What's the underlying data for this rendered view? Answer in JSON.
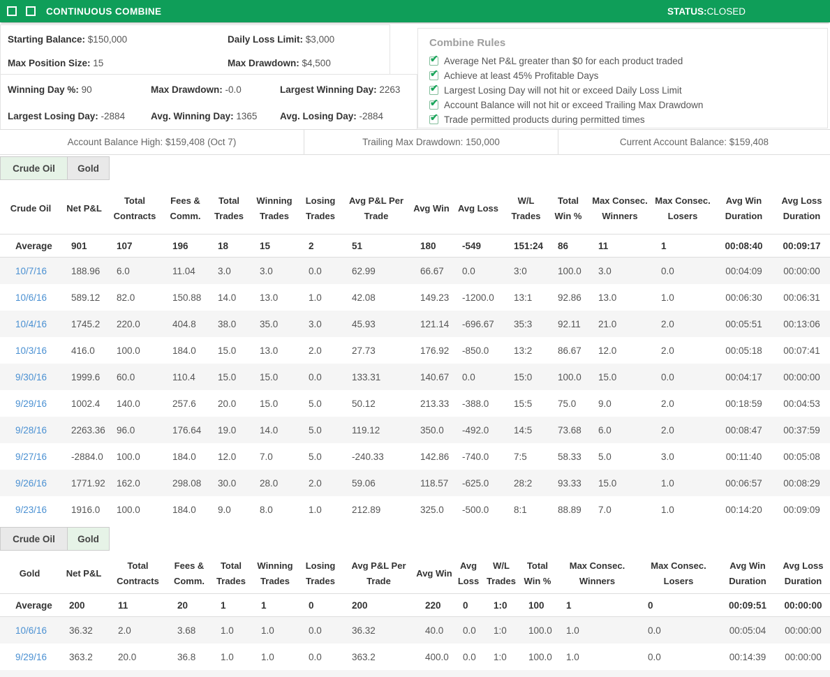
{
  "title_bar": {
    "title": "CONTINUOUS COMBINE",
    "status_label": "STATUS:",
    "status_value": "CLOSED"
  },
  "stats_primary": [
    {
      "label": "Starting Balance:",
      "value": "$150,000"
    },
    {
      "label": "Daily Loss Limit:",
      "value": "$3,000"
    },
    {
      "label": "Max Position Size:",
      "value": "15"
    },
    {
      "label": "Max Drawdown:",
      "value": "$4,500"
    }
  ],
  "stats_secondary": [
    {
      "label": "Winning Day %:",
      "value": "90"
    },
    {
      "label": "Max Drawdown:",
      "value": "-0.0"
    },
    {
      "label": "Largest Winning Day:",
      "value": "2263"
    },
    {
      "label": "Largest Losing Day:",
      "value": "-2884"
    },
    {
      "label": "Avg. Winning Day:",
      "value": "1365"
    },
    {
      "label": "Avg. Losing Day:",
      "value": "-2884"
    }
  ],
  "combine_rules": {
    "title": "Combine Rules",
    "items": [
      "Average Net P&L greater than $0 for each product traded",
      "Achieve at least 45% Profitable Days",
      "Largest Losing Day will not hit or exceed Daily Loss Limit",
      "Account Balance will not hit or exceed Trailing Max Drawdown",
      "Trade permitted products during permitted times"
    ]
  },
  "icons": {
    "rule_check": "✔"
  },
  "account_bar": {
    "balance_high": "Account Balance High: $159,408 (Oct 7)",
    "trailing_max_drawdown": "Trailing Max Drawdown: 150,000",
    "current_balance": "Current Account Balance: $159,408"
  },
  "colors": {
    "header_green": "#0F9E59",
    "check_green": "#1CA65C",
    "link_blue": "#4A90D2",
    "active_tab_bg": "#E6F3E7"
  },
  "tables": [
    {
      "id": "crude-oil",
      "tabs": [
        {
          "label": "Crude Oil",
          "active": true
        },
        {
          "label": "Gold",
          "active": false
        }
      ],
      "columns": [
        "Crude Oil",
        "Net P&L",
        "Total Contracts",
        "Fees & Comm.",
        "Total Trades",
        "Winning Trades",
        "Losing Trades",
        "Avg P&L Per Trade",
        "Avg Win",
        "Avg Loss",
        "W/L Trades",
        "Total Win %",
        "Max Consec. Winners",
        "Max Consec. Losers",
        "Avg Win Duration",
        "Avg Loss Duration"
      ],
      "rows": [
        {
          "type": "average",
          "cells": [
            "Average",
            "901",
            "107",
            "196",
            "18",
            "15",
            "2",
            "51",
            "180",
            "-549",
            "151:24",
            "86",
            "11",
            "1",
            "00:08:40",
            "00:09:17"
          ]
        },
        {
          "type": "day",
          "cells": [
            "10/7/16",
            "188.96",
            "6.0",
            "11.04",
            "3.0",
            "3.0",
            "0.0",
            "62.99",
            "66.67",
            "0.0",
            "3:0",
            "100.0",
            "3.0",
            "0.0",
            "00:04:09",
            "00:00:00"
          ]
        },
        {
          "type": "day",
          "cells": [
            "10/6/16",
            "589.12",
            "82.0",
            "150.88",
            "14.0",
            "13.0",
            "1.0",
            "42.08",
            "149.23",
            "-1200.0",
            "13:1",
            "92.86",
            "13.0",
            "1.0",
            "00:06:30",
            "00:06:31"
          ]
        },
        {
          "type": "day",
          "cells": [
            "10/4/16",
            "1745.2",
            "220.0",
            "404.8",
            "38.0",
            "35.0",
            "3.0",
            "45.93",
            "121.14",
            "-696.67",
            "35:3",
            "92.11",
            "21.0",
            "2.0",
            "00:05:51",
            "00:13:06"
          ]
        },
        {
          "type": "day",
          "cells": [
            "10/3/16",
            "416.0",
            "100.0",
            "184.0",
            "15.0",
            "13.0",
            "2.0",
            "27.73",
            "176.92",
            "-850.0",
            "13:2",
            "86.67",
            "12.0",
            "2.0",
            "00:05:18",
            "00:07:41"
          ]
        },
        {
          "type": "day",
          "cells": [
            "9/30/16",
            "1999.6",
            "60.0",
            "110.4",
            "15.0",
            "15.0",
            "0.0",
            "133.31",
            "140.67",
            "0.0",
            "15:0",
            "100.0",
            "15.0",
            "0.0",
            "00:04:17",
            "00:00:00"
          ]
        },
        {
          "type": "day",
          "cells": [
            "9/29/16",
            "1002.4",
            "140.0",
            "257.6",
            "20.0",
            "15.0",
            "5.0",
            "50.12",
            "213.33",
            "-388.0",
            "15:5",
            "75.0",
            "9.0",
            "2.0",
            "00:18:59",
            "00:04:53"
          ]
        },
        {
          "type": "day",
          "cells": [
            "9/28/16",
            "2263.36",
            "96.0",
            "176.64",
            "19.0",
            "14.0",
            "5.0",
            "119.12",
            "350.0",
            "-492.0",
            "14:5",
            "73.68",
            "6.0",
            "2.0",
            "00:08:47",
            "00:37:59"
          ]
        },
        {
          "type": "day",
          "cells": [
            "9/27/16",
            "-2884.0",
            "100.0",
            "184.0",
            "12.0",
            "7.0",
            "5.0",
            "-240.33",
            "142.86",
            "-740.0",
            "7:5",
            "58.33",
            "5.0",
            "3.0",
            "00:11:40",
            "00:05:08"
          ]
        },
        {
          "type": "day",
          "cells": [
            "9/26/16",
            "1771.92",
            "162.0",
            "298.08",
            "30.0",
            "28.0",
            "2.0",
            "59.06",
            "118.57",
            "-625.0",
            "28:2",
            "93.33",
            "15.0",
            "1.0",
            "00:06:57",
            "00:08:29"
          ]
        },
        {
          "type": "day",
          "cells": [
            "9/23/16",
            "1916.0",
            "100.0",
            "184.0",
            "9.0",
            "8.0",
            "1.0",
            "212.89",
            "325.0",
            "-500.0",
            "8:1",
            "88.89",
            "7.0",
            "1.0",
            "00:14:20",
            "00:09:09"
          ]
        }
      ]
    },
    {
      "id": "gold",
      "tabs": [
        {
          "label": "Crude Oil",
          "active": false
        },
        {
          "label": "Gold",
          "active": true
        }
      ],
      "columns": [
        "Gold",
        "Net P&L",
        "Total Contracts",
        "Fees & Comm.",
        "Total Trades",
        "Winning Trades",
        "Losing Trades",
        "Avg P&L Per Trade",
        "Avg Win",
        "Avg Loss",
        "W/L Trades",
        "Total Win %",
        "Max Consec. Winners",
        "Max Consec. Losers",
        "Avg Win Duration",
        "Avg Loss Duration"
      ],
      "rows": [
        {
          "type": "average",
          "cells": [
            "Average",
            "200",
            "11",
            "20",
            "1",
            "1",
            "0",
            "200",
            "220",
            "0",
            "1:0",
            "100",
            "1",
            "0",
            "00:09:51",
            "00:00:00"
          ]
        },
        {
          "type": "day",
          "cells": [
            "10/6/16",
            "36.32",
            "2.0",
            "3.68",
            "1.0",
            "1.0",
            "0.0",
            "36.32",
            "40.0",
            "0.0",
            "1:0",
            "100.0",
            "1.0",
            "0.0",
            "00:05:04",
            "00:00:00"
          ]
        },
        {
          "type": "day",
          "cells": [
            "9/29/16",
            "363.2",
            "20.0",
            "36.8",
            "1.0",
            "1.0",
            "0.0",
            "363.2",
            "400.0",
            "0.0",
            "1:0",
            "100.0",
            "1.0",
            "0.0",
            "00:14:39",
            "00:00:00"
          ]
        }
      ]
    }
  ]
}
